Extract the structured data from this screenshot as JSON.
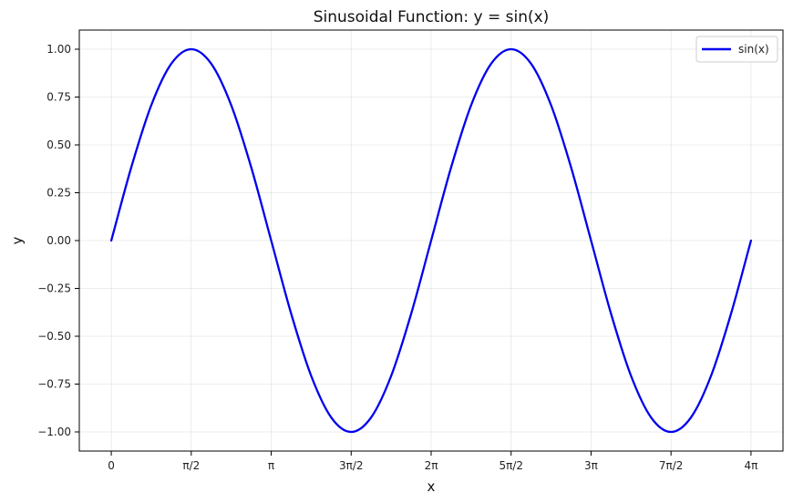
{
  "chart_data": {
    "type": "line",
    "title": "Sinusoidal Function: y = sin(x)",
    "xlabel": "x",
    "ylabel": "y",
    "xlim": [
      -0.6283,
      13.1947
    ],
    "ylim": [
      -1.1,
      1.1
    ],
    "grid": true,
    "legend_position": "top-right",
    "x_ticks": [
      {
        "value": 0,
        "label": "0"
      },
      {
        "value": 1.5708,
        "label": "π/2"
      },
      {
        "value": 3.1416,
        "label": "π"
      },
      {
        "value": 4.7124,
        "label": "3π/2"
      },
      {
        "value": 6.2832,
        "label": "2π"
      },
      {
        "value": 7.854,
        "label": "5π/2"
      },
      {
        "value": 9.4248,
        "label": "3π"
      },
      {
        "value": 10.9956,
        "label": "7π/2"
      },
      {
        "value": 12.5664,
        "label": "4π"
      }
    ],
    "y_ticks": [
      {
        "value": 1.0,
        "label": "1.00"
      },
      {
        "value": 0.75,
        "label": "0.75"
      },
      {
        "value": 0.5,
        "label": "0.50"
      },
      {
        "value": 0.25,
        "label": "0.25"
      },
      {
        "value": 0.0,
        "label": "0.00"
      },
      {
        "value": -0.25,
        "label": "−0.25"
      },
      {
        "value": -0.5,
        "label": "−0.50"
      },
      {
        "value": -0.75,
        "label": "−0.75"
      },
      {
        "value": -1.0,
        "label": "−1.00"
      }
    ],
    "series": [
      {
        "name": "sin(x)",
        "color": "#0000ee",
        "x": [
          0,
          0.3927,
          0.7854,
          1.1781,
          1.5708,
          1.9635,
          2.3562,
          2.7489,
          3.1416,
          3.5343,
          3.927,
          4.3197,
          4.7124,
          5.1051,
          5.4978,
          5.8905,
          6.2832,
          6.6759,
          7.0686,
          7.4613,
          7.854,
          8.2467,
          8.6394,
          9.0321,
          9.4248,
          9.8175,
          10.2102,
          10.6029,
          10.9956,
          11.3883,
          11.781,
          12.1737,
          12.5664
        ],
        "values": [
          0,
          0.3827,
          0.7071,
          0.9239,
          1.0,
          0.9239,
          0.7071,
          0.3827,
          0,
          -0.3827,
          -0.7071,
          -0.9239,
          -1.0,
          -0.9239,
          -0.7071,
          -0.3827,
          0,
          0.3827,
          0.7071,
          0.9239,
          1.0,
          0.9239,
          0.7071,
          0.3827,
          0,
          -0.3827,
          -0.7071,
          -0.9239,
          -1.0,
          -0.9239,
          -0.7071,
          -0.3827,
          0
        ]
      }
    ]
  }
}
